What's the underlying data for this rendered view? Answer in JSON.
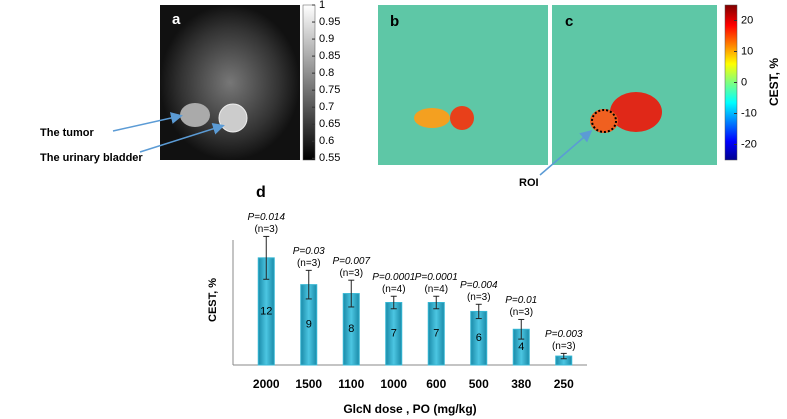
{
  "panels": {
    "a": "a",
    "b": "b",
    "c": "c",
    "d": "d"
  },
  "annotations": {
    "tumor": "The tumor",
    "bladder": "The urinary bladder",
    "roi": "ROI"
  },
  "gray_colorbar": {
    "ticks": [
      1,
      0.95,
      0.9,
      0.85,
      0.8,
      0.75,
      0.7,
      0.65,
      0.6,
      0.55
    ],
    "lim": [
      0.545,
      1.0
    ]
  },
  "color_colorbar": {
    "label": "CEST, %",
    "ticks": [
      20,
      10,
      0,
      -10,
      -20
    ],
    "lim": [
      -25,
      25
    ]
  },
  "chart_data": {
    "type": "bar",
    "ylabel": "CEST, %",
    "xlabel": "GlcN dose , PO (mg/kg)",
    "categories": [
      "2000",
      "1500",
      "1100",
      "1000",
      "600",
      "500",
      "380",
      "250"
    ],
    "values": [
      12,
      9,
      8,
      7,
      7,
      6,
      4,
      1
    ],
    "errors": [
      2.4,
      1.6,
      1.5,
      0.7,
      0.7,
      0.8,
      1.1,
      0.3
    ],
    "value_labels": [
      "12",
      "9",
      "8",
      "7",
      "7",
      "6",
      "4",
      null
    ],
    "p_values": [
      "P=0.014",
      "P=0.03",
      "P=0.007",
      "P=0.0001",
      "P=0.0001",
      "P=0.004",
      "P=0.01",
      "P=0.003"
    ],
    "n_labels": [
      "(n=3)",
      "(n=3)",
      "(n=3)",
      "(n=4)",
      "(n=4)",
      "(n=3)",
      "(n=3)",
      "(n=3)"
    ],
    "color": "#35b6d3",
    "ylim": [
      0,
      14
    ]
  }
}
